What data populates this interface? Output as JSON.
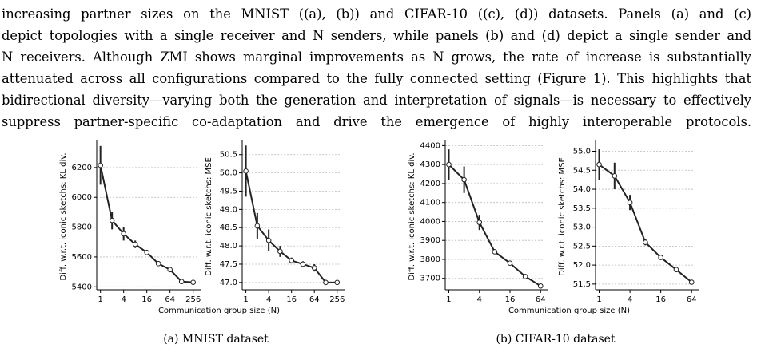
{
  "paragraph": [
    "increasing partner sizes on the MNIST ((a), (b)) and CIFAR-10 ((c), (d)) datasets. Panels (a) and (c)",
    "depict topologies with a single receiver and N senders, while panels (b) and (d) depict a single sender and",
    "N receivers. Although ZMI shows marginal improvements as N grows, the rate of increase is substantially",
    "attenuated across all configurations compared to the fully connected setting (Figure 1). This highlights that",
    "bidirectional diversity—varying both the generation and interpretation of signals—is necessary to effectively",
    "suppress partner-specific co-adaptation and drive the emergence of highly interoperable protocols."
  ],
  "figures": [
    {
      "xlabel": "Communication group size (N)",
      "caption": "(a) MNIST dataset"
    },
    {
      "xlabel": "Communication group size (N)",
      "caption": "(b) CIFAR-10 dataset"
    }
  ],
  "chart_data": [
    {
      "type": "line",
      "ylabel": "Diff. w.r.t. iconic sketchs: KL div.",
      "log_x": 2,
      "x": [
        1,
        2,
        4,
        8,
        16,
        32,
        64,
        128,
        256
      ],
      "values": [
        6215,
        5845,
        5755,
        5685,
        5630,
        5555,
        5515,
        5435,
        5430
      ],
      "errors": [
        130,
        60,
        45,
        25,
        15,
        10,
        10,
        10,
        10
      ],
      "color": "#222222",
      "xlim": [
        0.8,
        330
      ],
      "xticks": [
        1,
        4,
        16,
        64,
        256
      ],
      "ylim": [
        5380,
        6360
      ],
      "yticks": [
        5400,
        5600,
        5800,
        6000,
        6200
      ],
      "grid": true
    },
    {
      "type": "line",
      "ylabel": "Diff. w.r.t. iconic sketchs: MSE",
      "log_x": 2,
      "x": [
        1,
        2,
        4,
        8,
        16,
        32,
        64,
        128,
        256
      ],
      "values": [
        50.05,
        48.55,
        48.15,
        47.85,
        47.6,
        47.5,
        47.4,
        47.0,
        47.0
      ],
      "errors": [
        0.7,
        0.35,
        0.3,
        0.15,
        0.08,
        0.08,
        0.1,
        0.05,
        0.05
      ],
      "color": "#222222",
      "xlim": [
        0.8,
        330
      ],
      "xticks": [
        1,
        4,
        16,
        64,
        256
      ],
      "ylim": [
        46.8,
        50.8
      ],
      "yticks": [
        {
          "value": 47,
          "label": "47.0"
        },
        47.5,
        {
          "value": 48,
          "label": "48.0"
        },
        48.5,
        {
          "value": 49,
          "label": "49.0"
        },
        49.5,
        {
          "value": 50,
          "label": "50.0"
        },
        50.5
      ],
      "grid": true
    },
    {
      "type": "line",
      "ylabel": "Diff. w.r.t. iconic sketchs: KL div.",
      "log_x": 2,
      "x": [
        1,
        2,
        4,
        8,
        16,
        32,
        64
      ],
      "values": [
        4300,
        4220,
        3995,
        3840,
        3780,
        3710,
        3660
      ],
      "errors": [
        80,
        70,
        40,
        10,
        8,
        8,
        8
      ],
      "color": "#222222",
      "xlim": [
        0.85,
        76
      ],
      "xticks": [
        1,
        4,
        16,
        64
      ],
      "ylim": [
        3640,
        4410
      ],
      "yticks": [
        3700,
        3800,
        3900,
        4000,
        4100,
        4200,
        4300,
        4400
      ],
      "grid": true
    },
    {
      "type": "line",
      "ylabel": "Diff. w.r.t. iconic sketchs: MSE",
      "log_x": 2,
      "x": [
        1,
        2,
        4,
        8,
        16,
        32,
        64
      ],
      "values": [
        54.65,
        54.35,
        53.65,
        52.6,
        52.2,
        51.88,
        51.55
      ],
      "errors": [
        0.4,
        0.35,
        0.2,
        0.08,
        0.05,
        0.05,
        0.05
      ],
      "color": "#222222",
      "xlim": [
        0.85,
        76
      ],
      "xticks": [
        1,
        4,
        16,
        64
      ],
      "ylim": [
        51.35,
        55.2
      ],
      "yticks": [
        51.5,
        {
          "value": 52,
          "label": "52.0"
        },
        52.5,
        {
          "value": 53,
          "label": "53.0"
        },
        53.5,
        {
          "value": 54,
          "label": "54.0"
        },
        54.5,
        {
          "value": 55,
          "label": "55.0"
        }
      ],
      "grid": true
    }
  ]
}
